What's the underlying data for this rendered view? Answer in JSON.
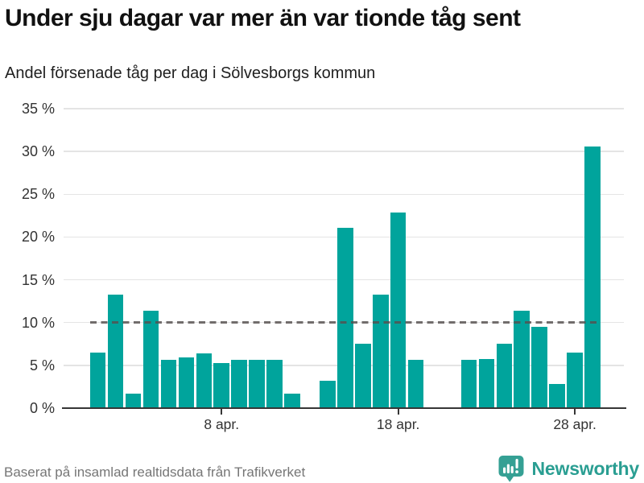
{
  "header": {
    "title": "Under sju dagar var mer än var tionde tåg sent",
    "subtitle": "Andel försenade tåg per dag i Sölvesborgs kommun"
  },
  "footer": {
    "source": "Baserat på insamlad realtidsdata från Trafikverket",
    "brand": "Newsworthy",
    "brand_color": "#2a9e92"
  },
  "chart_data": {
    "type": "bar",
    "title": "Under sju dagar var mer än var tionde tåg sent",
    "subtitle": "Andel försenade tåg per dag i Sölvesborgs kommun",
    "x_unit": "dag i april",
    "points": [
      {
        "day": 1,
        "value": 6.5
      },
      {
        "day": 2,
        "value": 13.3
      },
      {
        "day": 3,
        "value": 1.7
      },
      {
        "day": 4,
        "value": 11.4
      },
      {
        "day": 5,
        "value": 5.6
      },
      {
        "day": 6,
        "value": 5.9
      },
      {
        "day": 7,
        "value": 6.4
      },
      {
        "day": 8,
        "value": 5.3
      },
      {
        "day": 9,
        "value": 5.6
      },
      {
        "day": 10,
        "value": 5.6
      },
      {
        "day": 11,
        "value": 5.6
      },
      {
        "day": 12,
        "value": 1.7
      },
      {
        "day": 14,
        "value": 3.2
      },
      {
        "day": 15,
        "value": 21.1
      },
      {
        "day": 16,
        "value": 7.5
      },
      {
        "day": 17,
        "value": 13.3
      },
      {
        "day": 18,
        "value": 22.9
      },
      {
        "day": 19,
        "value": 5.6
      },
      {
        "day": 22,
        "value": 5.6
      },
      {
        "day": 23,
        "value": 5.7
      },
      {
        "day": 24,
        "value": 7.5
      },
      {
        "day": 25,
        "value": 11.4
      },
      {
        "day": 26,
        "value": 9.5
      },
      {
        "day": 27,
        "value": 2.8
      },
      {
        "day": 28,
        "value": 6.5
      },
      {
        "day": 29,
        "value": 30.6
      }
    ],
    "missing_days": [
      13,
      20,
      21
    ],
    "x_domain_days": [
      1,
      29
    ],
    "ylim": [
      0,
      35
    ],
    "yticks": [
      0,
      5,
      10,
      15,
      20,
      25,
      30,
      35
    ],
    "ytick_labels": [
      "0 %",
      "5 %",
      "10 %",
      "15 %",
      "20 %",
      "25 %",
      "30 %",
      "35 %"
    ],
    "xticks": [
      {
        "day": 8,
        "label": "8 apr."
      },
      {
        "day": 18,
        "label": "18 apr."
      },
      {
        "day": 28,
        "label": "28 apr."
      }
    ],
    "reference_line": {
      "value": 10,
      "style": "dashed",
      "color": "#55504f"
    },
    "bar_color": "#00a49c",
    "grid": "horizontal",
    "legend": null
  }
}
